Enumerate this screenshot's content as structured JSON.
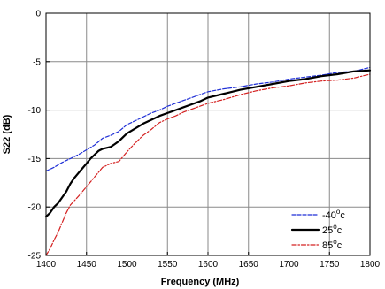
{
  "chart_data": {
    "type": "line",
    "xlabel": "Frequency (MHz)",
    "ylabel": "S22 (dB)",
    "xlim": [
      1400,
      1800
    ],
    "ylim": [
      -25,
      0
    ],
    "xticks": [
      1400,
      1450,
      1500,
      1550,
      1600,
      1650,
      1700,
      1750,
      1800
    ],
    "yticks": [
      -25,
      -20,
      -15,
      -10,
      -5,
      0
    ],
    "x_tick_labels": [
      "1400",
      "1450",
      "1500",
      "1550",
      "1600",
      "1650",
      "1700",
      "1750",
      "1800"
    ],
    "y_tick_labels": [
      "-25",
      "-20",
      "-15",
      "-10",
      "-5",
      "0"
    ],
    "grid": true,
    "legend_position": "lower-right",
    "series": [
      {
        "name": "-40",
        "name_sup": "o",
        "name_suffix": "c",
        "color": "#1f2fd6",
        "style": "dashed",
        "x": [
          1400,
          1410,
          1420,
          1430,
          1440,
          1450,
          1460,
          1470,
          1480,
          1490,
          1500,
          1510,
          1520,
          1530,
          1540,
          1550,
          1560,
          1570,
          1580,
          1590,
          1600,
          1620,
          1640,
          1660,
          1680,
          1700,
          1720,
          1740,
          1760,
          1780,
          1800
        ],
        "values": [
          -16.3,
          -15.9,
          -15.4,
          -15.0,
          -14.6,
          -14.1,
          -13.6,
          -12.9,
          -12.6,
          -12.2,
          -11.5,
          -11.1,
          -10.7,
          -10.3,
          -10.0,
          -9.6,
          -9.3,
          -9.0,
          -8.7,
          -8.4,
          -8.1,
          -7.8,
          -7.6,
          -7.3,
          -7.1,
          -6.8,
          -6.6,
          -6.4,
          -6.1,
          -6.0,
          -5.6
        ]
      },
      {
        "name": "25",
        "name_sup": "o",
        "name_suffix": "c",
        "color": "#000000",
        "style": "solid",
        "x": [
          1400,
          1405,
          1410,
          1415,
          1420,
          1425,
          1430,
          1435,
          1440,
          1445,
          1450,
          1455,
          1460,
          1465,
          1470,
          1475,
          1480,
          1485,
          1490,
          1495,
          1500,
          1510,
          1520,
          1530,
          1540,
          1550,
          1560,
          1570,
          1580,
          1590,
          1600,
          1620,
          1640,
          1660,
          1680,
          1700,
          1720,
          1740,
          1760,
          1780,
          1800
        ],
        "values": [
          -21.0,
          -20.6,
          -20.0,
          -19.6,
          -19.0,
          -18.4,
          -17.6,
          -17.0,
          -16.5,
          -16.0,
          -15.5,
          -15.0,
          -14.6,
          -14.2,
          -14.0,
          -13.9,
          -13.8,
          -13.5,
          -13.2,
          -12.8,
          -12.4,
          -11.9,
          -11.4,
          -11.0,
          -10.6,
          -10.3,
          -10.0,
          -9.7,
          -9.4,
          -9.1,
          -8.7,
          -8.3,
          -7.9,
          -7.6,
          -7.3,
          -7.0,
          -6.8,
          -6.5,
          -6.3,
          -6.0,
          -5.9
        ]
      },
      {
        "name": "85",
        "name_sup": "o",
        "name_suffix": "c",
        "color": "#d42020",
        "style": "dashdot",
        "x": [
          1400,
          1405,
          1410,
          1415,
          1420,
          1425,
          1430,
          1440,
          1450,
          1460,
          1470,
          1480,
          1490,
          1500,
          1510,
          1520,
          1530,
          1540,
          1550,
          1560,
          1570,
          1580,
          1590,
          1600,
          1620,
          1640,
          1660,
          1680,
          1700,
          1720,
          1740,
          1760,
          1780,
          1800
        ],
        "values": [
          -25.0,
          -24.3,
          -23.4,
          -22.6,
          -21.6,
          -20.6,
          -19.8,
          -18.9,
          -17.9,
          -16.9,
          -15.9,
          -15.5,
          -15.3,
          -14.3,
          -13.4,
          -12.6,
          -12.0,
          -11.3,
          -10.9,
          -10.6,
          -10.2,
          -9.9,
          -9.6,
          -9.3,
          -8.9,
          -8.4,
          -8.0,
          -7.7,
          -7.5,
          -7.2,
          -7.0,
          -6.9,
          -6.7,
          -6.3
        ]
      }
    ]
  }
}
